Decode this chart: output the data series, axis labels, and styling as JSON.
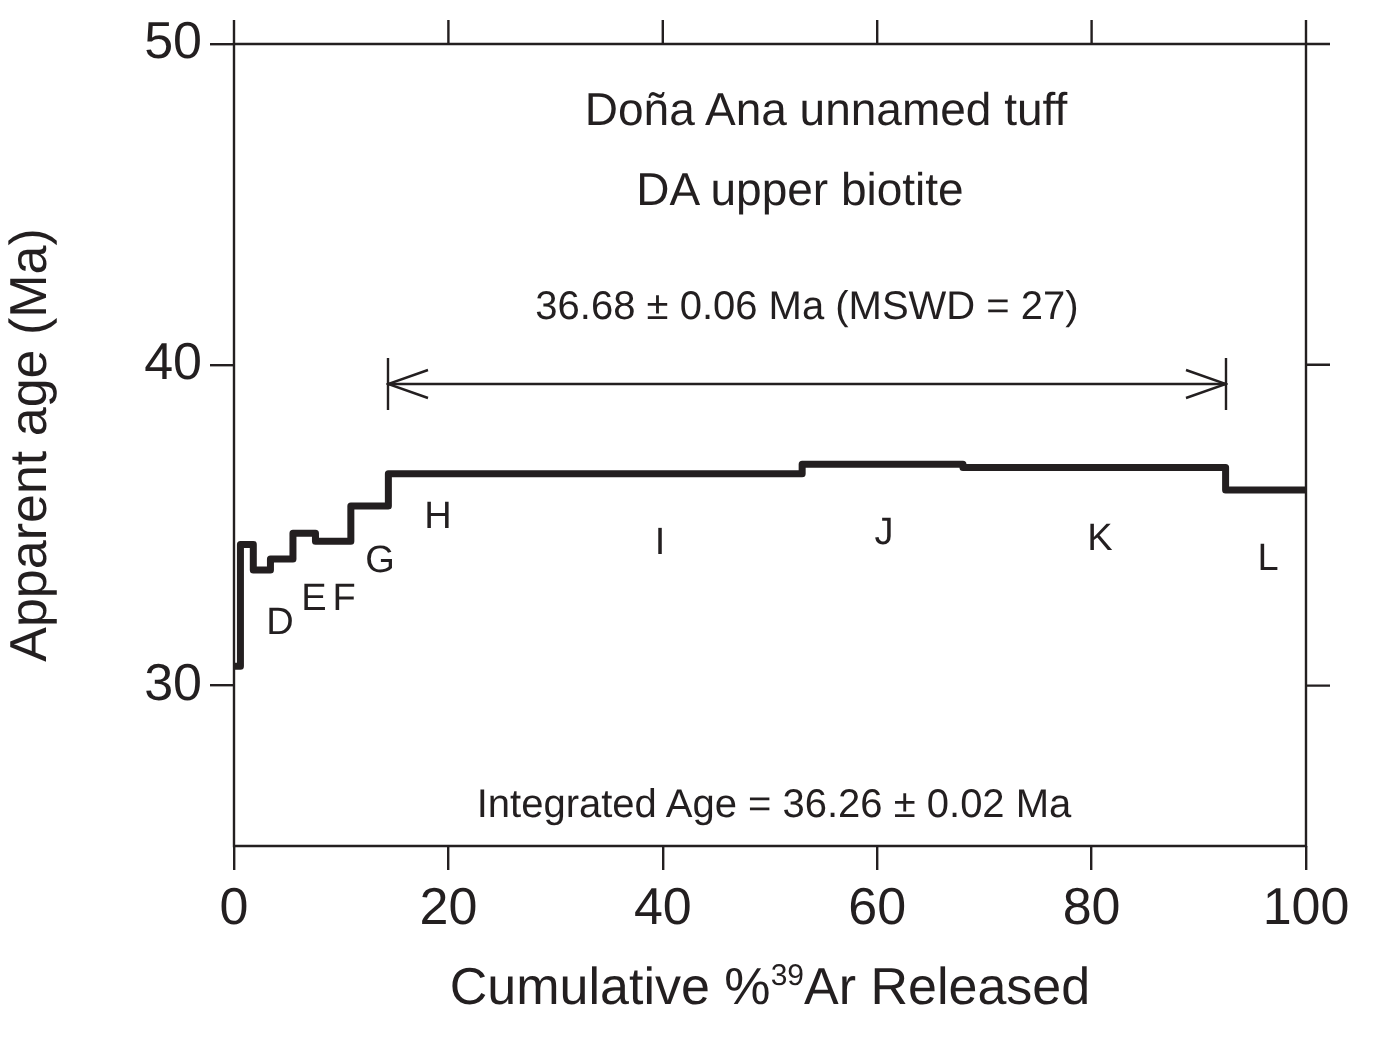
{
  "chart_data": {
    "type": "step",
    "title": "Doña Ana unnamed tuff",
    "subtitle": "DA upper biotite",
    "xlabel": "Cumulative %$^{39}$Ar Released",
    "ylabel": "Apparent age (Ma)",
    "x": [
      0,
      0.6,
      1.8,
      3.4,
      5.5,
      7.6,
      10.9,
      14.4,
      26,
      53,
      68,
      92.5,
      100
    ],
    "series": [
      {
        "color": "#231f20",
        "values": [
          30.6,
          34.4,
          33.6,
          33.95,
          34.75,
          34.5,
          35.6,
          36.6,
          36.6,
          36.9,
          36.8,
          36.1,
          36.1
        ]
      },
      {
        "type": "line",
        "color": "#231f20",
        "x": [
          14.4,
          92.5
        ],
        "values": [
          39.4,
          39.4
        ]
      }
    ],
    "xlim": [
      0,
      100
    ],
    "xticks": [
      0,
      20,
      40,
      60,
      80,
      100
    ],
    "ylim": [
      25,
      50
    ],
    "yticks": [
      30,
      40,
      50
    ],
    "annotations": [
      {
        "text": "36.68 ± 0.06 Ma (MSWD = 27)",
        "x": 53.45,
        "y": 39.4
      },
      "D",
      "E",
      "F",
      "G",
      "H",
      "I",
      "J",
      "K",
      "L",
      "Integrated Age = 36.26 ± 0.02 Ma"
    ],
    "grid": false,
    "legend": false,
    "marker": "none",
    "line_style": "solid"
  }
}
